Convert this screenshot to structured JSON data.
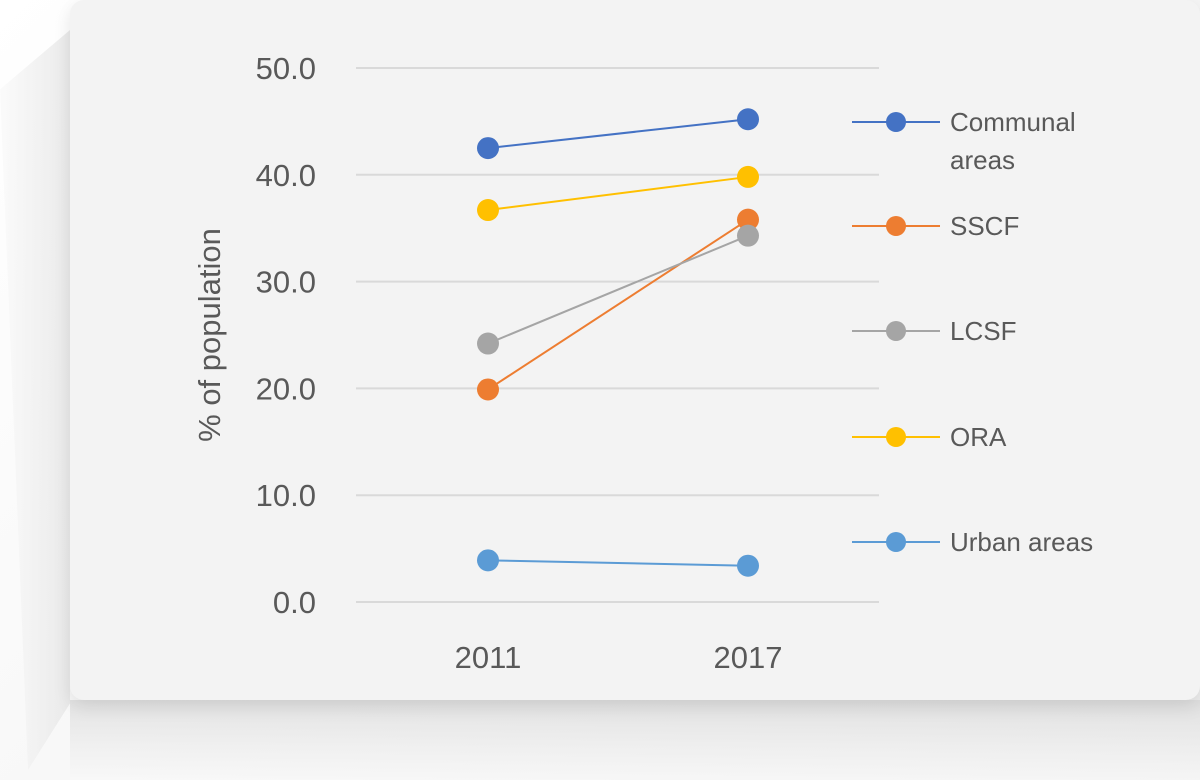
{
  "chart_data": {
    "type": "line",
    "x": [
      "2011",
      "2017"
    ],
    "ylabel": "% of population",
    "xlabel": "",
    "ylim": [
      0,
      50
    ],
    "yticks": [
      "0.0",
      "10.0",
      "20.0",
      "30.0",
      "40.0",
      "50.0"
    ],
    "grid": true,
    "legend_position": "right",
    "series": [
      {
        "name": "Communal areas",
        "values": [
          42.5,
          45.2
        ],
        "color": "#4472C4"
      },
      {
        "name": "SSCF",
        "values": [
          19.9,
          35.8
        ],
        "color": "#ED7D31"
      },
      {
        "name": "LCSF",
        "values": [
          24.2,
          34.3
        ],
        "color": "#A5A5A5"
      },
      {
        "name": "ORA",
        "values": [
          36.7,
          39.8
        ],
        "color": "#FFC000"
      },
      {
        "name": "Urban areas",
        "values": [
          3.9,
          3.4
        ],
        "color": "#5B9BD5"
      }
    ]
  }
}
